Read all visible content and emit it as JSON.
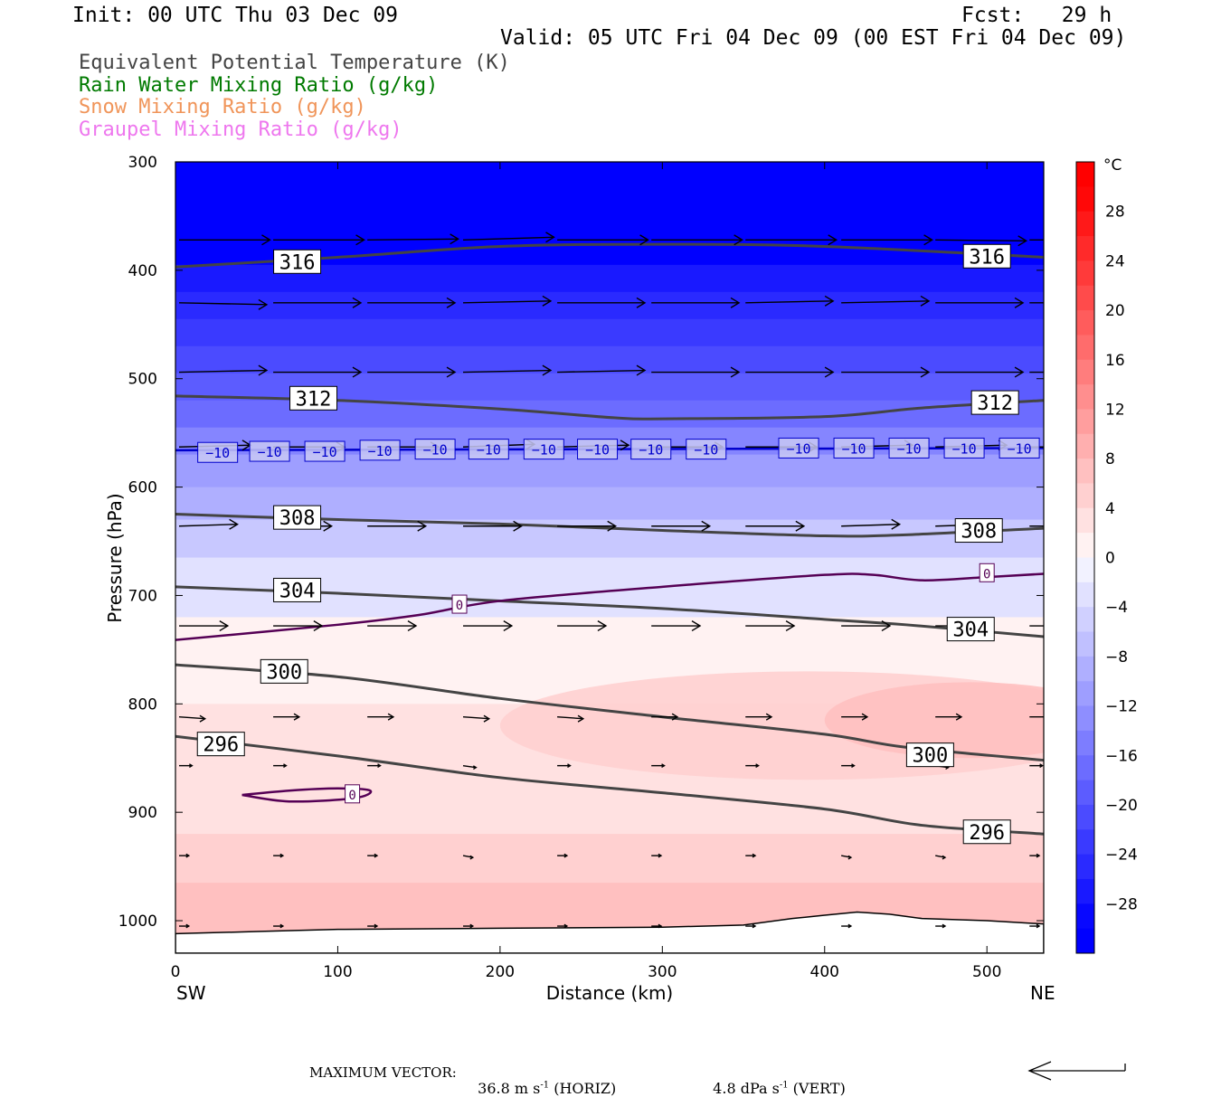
{
  "header": {
    "init": "Init: 00 UTC Thu 03 Dec 09",
    "fcst": "Fcst:   29 h",
    "valid": "Valid: 05 UTC Fri 04 Dec 09 (00 EST Fri 04 Dec 09)"
  },
  "legend": [
    {
      "label": "Equivalent Potential Temperature (K)",
      "color": "#444444"
    },
    {
      "label": "Rain Water Mixing Ratio (g/kg)",
      "color": "#007a00"
    },
    {
      "label": "Snow Mixing Ratio (g/kg)",
      "color": "#f0955a"
    },
    {
      "label": "Graupel Mixing Ratio (g/kg)",
      "color": "#ee77ee"
    }
  ],
  "footer": {
    "max_vector_label": "MAXIMUM VECTOR:",
    "horiz": "36.8 m s",
    "horiz_unit": "(HORIZ)",
    "vert": "4.8 dPa s",
    "vert_unit": "(VERT)",
    "exp": "-1"
  },
  "chart_data": {
    "type": "cross-section",
    "xlabel": "Distance (km)",
    "ylabel": "Pressure (hPa)",
    "xlim": [
      0,
      535
    ],
    "ylim": [
      1030,
      300
    ],
    "x_ticks": [
      0,
      100,
      200,
      300,
      400,
      500
    ],
    "y_ticks": [
      300,
      400,
      500,
      600,
      700,
      800,
      900,
      1000
    ],
    "x_end_labels": {
      "left": "SW",
      "right": "NE"
    },
    "colorbar": {
      "unit": "°C",
      "range": [
        -32,
        32
      ],
      "tick_values": [
        28,
        24,
        20,
        16,
        12,
        8,
        4,
        0,
        -4,
        -8,
        -12,
        -16,
        -20,
        -24,
        -28
      ],
      "tick_labels": [
        "28",
        "24",
        "20",
        "16",
        "12",
        "8",
        "4",
        "0",
        "−4",
        "−8",
        "−12",
        "−16",
        "−20",
        "−24",
        "−28"
      ]
    },
    "temperature_bands": [
      {
        "p_top": 300,
        "p_bot": 395,
        "value": -30
      },
      {
        "p_top": 395,
        "p_bot": 420,
        "value": -27
      },
      {
        "p_top": 420,
        "p_bot": 445,
        "value": -25
      },
      {
        "p_top": 445,
        "p_bot": 470,
        "value": -23
      },
      {
        "p_top": 470,
        "p_bot": 495,
        "value": -21
      },
      {
        "p_top": 495,
        "p_bot": 520,
        "value": -19
      },
      {
        "p_top": 520,
        "p_bot": 545,
        "value": -17
      },
      {
        "p_top": 545,
        "p_bot": 570,
        "value": -14
      },
      {
        "p_top": 570,
        "p_bot": 600,
        "value": -11
      },
      {
        "p_top": 600,
        "p_bot": 630,
        "value": -9
      },
      {
        "p_top": 630,
        "p_bot": 665,
        "value": -6
      },
      {
        "p_top": 665,
        "p_bot": 720,
        "value": -3
      },
      {
        "p_top": 720,
        "p_bot": 800,
        "value": 1
      },
      {
        "p_top": 800,
        "p_bot": 920,
        "value": 3
      },
      {
        "p_top": 920,
        "p_bot": 965,
        "value": 5
      },
      {
        "p_top": 965,
        "p_bot": 1030,
        "value": 7
      }
    ],
    "warm_patches": [
      {
        "x": [
          200,
          535
        ],
        "p": [
          770,
          870
        ],
        "value": 5
      },
      {
        "x": [
          400,
          535
        ],
        "p": [
          780,
          850
        ],
        "value": 7
      }
    ],
    "theta_e_contours": [
      {
        "value": "316",
        "points": [
          [
            0,
            397
          ],
          [
            100,
            388
          ],
          [
            200,
            378
          ],
          [
            300,
            376
          ],
          [
            400,
            378
          ],
          [
            535,
            388
          ]
        ],
        "labels": [
          [
            75,
            392
          ],
          [
            500,
            387
          ]
        ]
      },
      {
        "value": "312",
        "points": [
          [
            0,
            516
          ],
          [
            100,
            520
          ],
          [
            200,
            528
          ],
          [
            270,
            536
          ],
          [
            300,
            537
          ],
          [
            400,
            535
          ],
          [
            460,
            527
          ],
          [
            535,
            520
          ]
        ],
        "labels": [
          [
            85,
            518
          ],
          [
            505,
            522
          ]
        ]
      },
      {
        "value": "308",
        "points": [
          [
            0,
            625
          ],
          [
            100,
            630
          ],
          [
            200,
            634
          ],
          [
            300,
            640
          ],
          [
            400,
            645
          ],
          [
            450,
            644
          ],
          [
            535,
            638
          ]
        ],
        "labels": [
          [
            75,
            628
          ],
          [
            495,
            640
          ]
        ]
      },
      {
        "value": "304",
        "points": [
          [
            0,
            692
          ],
          [
            100,
            698
          ],
          [
            200,
            705
          ],
          [
            300,
            712
          ],
          [
            400,
            722
          ],
          [
            450,
            727
          ],
          [
            535,
            738
          ]
        ],
        "labels": [
          [
            75,
            695
          ],
          [
            490,
            731
          ]
        ]
      },
      {
        "value": "300",
        "points": [
          [
            0,
            764
          ],
          [
            100,
            775
          ],
          [
            200,
            795
          ],
          [
            300,
            812
          ],
          [
            400,
            828
          ],
          [
            450,
            840
          ],
          [
            535,
            852
          ]
        ],
        "labels": [
          [
            67,
            770
          ],
          [
            465,
            847
          ]
        ]
      },
      {
        "value": "296",
        "points": [
          [
            0,
            830
          ],
          [
            100,
            848
          ],
          [
            200,
            868
          ],
          [
            300,
            882
          ],
          [
            400,
            897
          ],
          [
            460,
            912
          ],
          [
            535,
            920
          ]
        ],
        "labels": [
          [
            28,
            837
          ],
          [
            500,
            918
          ]
        ]
      }
    ],
    "isotherms": [
      {
        "value": "-10",
        "color": "#0000cc",
        "points": [
          [
            0,
            566
          ],
          [
            535,
            564
          ]
        ],
        "labels": [
          [
            26,
            568
          ],
          [
            58,
            567
          ],
          [
            92,
            567
          ],
          [
            126,
            566
          ],
          [
            160,
            565
          ],
          [
            193,
            565
          ],
          [
            227,
            565
          ],
          [
            260,
            565
          ],
          [
            293,
            565
          ],
          [
            327,
            565
          ],
          [
            384,
            564
          ],
          [
            418,
            564
          ],
          [
            452,
            564
          ],
          [
            486,
            564
          ],
          [
            520,
            564
          ]
        ]
      },
      {
        "value": "0",
        "color": "#550055",
        "points": [
          [
            0,
            741
          ],
          [
            100,
            727
          ],
          [
            150,
            718
          ],
          [
            200,
            705
          ],
          [
            300,
            692
          ],
          [
            400,
            681
          ],
          [
            430,
            681
          ],
          [
            460,
            686
          ],
          [
            500,
            683
          ],
          [
            535,
            680
          ]
        ],
        "labels": [
          [
            175,
            708
          ],
          [
            500,
            679
          ]
        ]
      },
      {
        "value": "0",
        "color": "#550055",
        "points": [
          [
            41,
            884
          ],
          [
            70,
            880
          ],
          [
            100,
            878
          ],
          [
            120,
            880
          ],
          [
            110,
            887
          ],
          [
            70,
            890
          ],
          [
            41,
            884
          ]
        ],
        "labels": [
          [
            109,
            883
          ]
        ]
      }
    ],
    "terrain_p": [
      [
        0,
        1012
      ],
      [
        50,
        1010
      ],
      [
        100,
        1008
      ],
      [
        200,
        1007
      ],
      [
        300,
        1006
      ],
      [
        350,
        1004
      ],
      [
        380,
        998
      ],
      [
        400,
        995
      ],
      [
        420,
        992
      ],
      [
        440,
        994
      ],
      [
        460,
        998
      ],
      [
        500,
        1000
      ],
      [
        535,
        1003
      ]
    ],
    "wind_vectors": [
      {
        "p": 372,
        "x": [
          0,
          58,
          116,
          175,
          233,
          291,
          349,
          408,
          466,
          524
        ],
        "u": 56,
        "w": [
          0,
          0,
          1,
          3,
          0,
          0,
          0,
          0,
          -1,
          0
        ]
      },
      {
        "p": 430,
        "x": [
          0,
          58,
          116,
          175,
          233,
          291,
          349,
          408,
          466,
          524
        ],
        "u": 54,
        "w": [
          -2,
          0,
          0,
          2,
          0,
          0,
          2,
          2,
          0,
          0
        ]
      },
      {
        "p": 494,
        "x": [
          0,
          58,
          116,
          175,
          233,
          291,
          349,
          408,
          466,
          524
        ],
        "u": 54,
        "w": [
          2,
          0,
          0,
          2,
          2,
          0,
          0,
          0,
          0,
          0
        ]
      },
      {
        "p": 563,
        "x": [
          0,
          58,
          116,
          175,
          233,
          291,
          349,
          408,
          466,
          524
        ],
        "u": 44,
        "w": [
          2,
          0,
          0,
          3,
          2,
          0,
          0,
          2,
          2,
          0
        ]
      },
      {
        "p": 636,
        "x": [
          0,
          58,
          116,
          175,
          233,
          291,
          349,
          408,
          466,
          524
        ],
        "u": 36,
        "w": [
          2,
          0,
          0,
          0,
          0,
          0,
          0,
          2,
          2,
          0
        ]
      },
      {
        "p": 728,
        "x": [
          0,
          58,
          116,
          175,
          233,
          291,
          349,
          408,
          466,
          524
        ],
        "u": 30,
        "w": [
          0,
          0,
          0,
          0,
          0,
          0,
          0,
          0,
          0,
          0
        ]
      },
      {
        "p": 812,
        "x": [
          0,
          58,
          116,
          175,
          233,
          291,
          349,
          408,
          466,
          524
        ],
        "u": 16,
        "w": [
          -2,
          0,
          0,
          -2,
          -2,
          0,
          0,
          0,
          0,
          0
        ]
      },
      {
        "p": 857,
        "x": [
          0,
          58,
          116,
          175,
          233,
          291,
          349,
          408,
          466,
          524
        ],
        "u": 8,
        "w": [
          0,
          0,
          0,
          -2,
          0,
          0,
          0,
          0,
          -2,
          0
        ]
      },
      {
        "p": 940,
        "x": [
          0,
          58,
          116,
          175,
          233,
          291,
          349,
          408,
          466,
          524
        ],
        "u": 6,
        "w": [
          0,
          0,
          0,
          -2,
          0,
          0,
          0,
          -2,
          -2,
          0
        ]
      },
      {
        "p": 1005,
        "x": [
          0,
          58,
          116,
          175,
          233,
          291,
          349,
          408,
          466,
          524
        ],
        "u": 6,
        "w": [
          0,
          0,
          0,
          0,
          0,
          0,
          0,
          0,
          0,
          0
        ]
      }
    ]
  }
}
